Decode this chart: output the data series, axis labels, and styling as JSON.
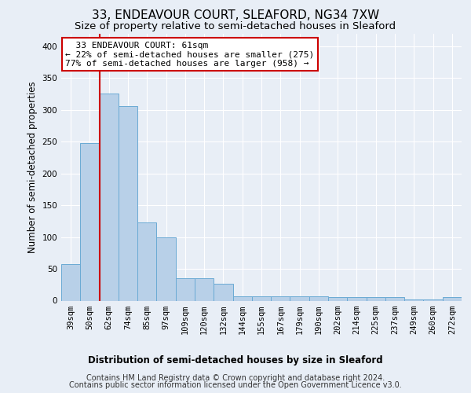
{
  "title_line1": "33, ENDEAVOUR COURT, SLEAFORD, NG34 7XW",
  "title_line2": "Size of property relative to semi-detached houses in Sleaford",
  "xlabel": "Distribution of semi-detached houses by size in Sleaford",
  "ylabel": "Number of semi-detached properties",
  "footer_line1": "Contains HM Land Registry data © Crown copyright and database right 2024.",
  "footer_line2": "Contains public sector information licensed under the Open Government Licence v3.0.",
  "annotation_line1": "33 ENDEAVOUR COURT: 61sqm",
  "annotation_line2": "← 22% of semi-detached houses are smaller (275)",
  "annotation_line3": "77% of semi-detached houses are larger (958) →",
  "bar_labels": [
    "39sqm",
    "50sqm",
    "62sqm",
    "74sqm",
    "85sqm",
    "97sqm",
    "109sqm",
    "120sqm",
    "132sqm",
    "144sqm",
    "155sqm",
    "167sqm",
    "179sqm",
    "190sqm",
    "202sqm",
    "214sqm",
    "225sqm",
    "237sqm",
    "249sqm",
    "260sqm",
    "272sqm"
  ],
  "bar_values": [
    57,
    248,
    325,
    306,
    123,
    99,
    35,
    35,
    27,
    7,
    7,
    7,
    7,
    7,
    6,
    6,
    6,
    5,
    2,
    2,
    5
  ],
  "bar_color": "#b8d0e8",
  "bar_edge_color": "#6aaad4",
  "red_line_x": 1.5,
  "ylim": [
    0,
    420
  ],
  "yticks": [
    0,
    50,
    100,
    150,
    200,
    250,
    300,
    350,
    400
  ],
  "background_color": "#e8eef6",
  "plot_background_color": "#e8eef6",
  "grid_color": "#ffffff",
  "annotation_box_color": "#ffffff",
  "annotation_box_edge_color": "#cc0000",
  "red_line_color": "#cc0000",
  "title_fontsize": 11,
  "subtitle_fontsize": 9.5,
  "axis_label_fontsize": 8.5,
  "tick_fontsize": 7.5,
  "annotation_fontsize": 8,
  "footer_fontsize": 7
}
